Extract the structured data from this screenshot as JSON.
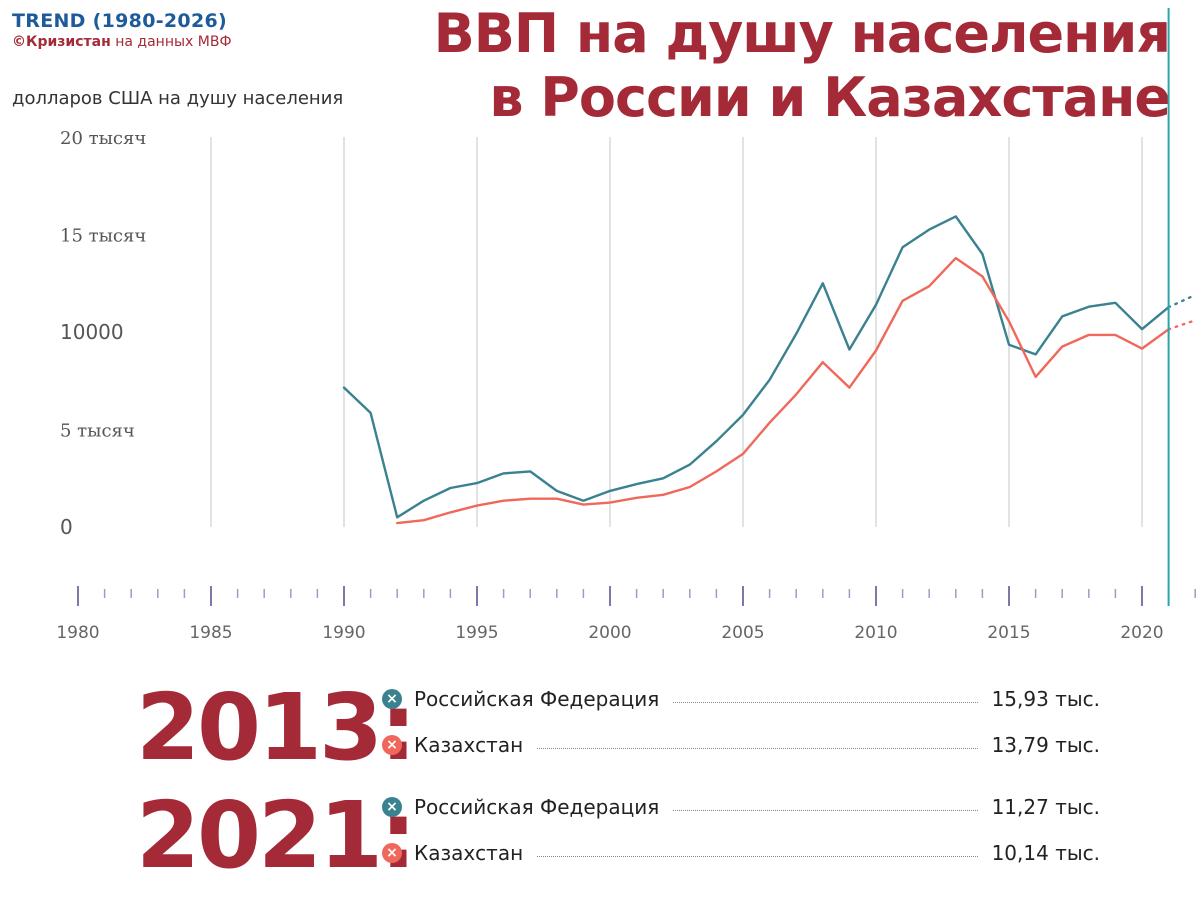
{
  "brand": {
    "title": "TREND (1980-2026)",
    "source_bold": "©Кризистан",
    "source_rest": "на данных МВФ"
  },
  "title_line1": "ВВП на душу населения",
  "title_line2": "в России и Казахстане",
  "unit_label": "долларов США на душу населения",
  "colors": {
    "russia": "#3a8290",
    "kazakhstan": "#f0685b",
    "accent": "#a52a38",
    "current_year_line": "#2aa3ad"
  },
  "chart_data": {
    "type": "line",
    "xlim": [
      1980,
      2022
    ],
    "ylim": [
      0,
      20000
    ],
    "x_ticks": [
      "1980",
      "1985",
      "1990",
      "1995",
      "2000",
      "2005",
      "2010",
      "2015",
      "2020"
    ],
    "y_ticks": [
      "0",
      "5 тысяч",
      "10000",
      "15 тысяч",
      "20 тысяч"
    ],
    "grid": true,
    "current_year_marker": 2021,
    "series": [
      {
        "name": "Российская Федерация",
        "color": "#3a8290",
        "x": [
          1990,
          1991,
          1992,
          1993,
          1994,
          1995,
          1996,
          1997,
          1998,
          1999,
          2000,
          2001,
          2002,
          2003,
          2004,
          2005,
          2006,
          2007,
          2008,
          2009,
          2010,
          2011,
          2012,
          2013,
          2014,
          2015,
          2016,
          2017,
          2018,
          2019,
          2020,
          2021
        ],
        "values": [
          7150,
          5850,
          500,
          1350,
          2000,
          2250,
          2750,
          2850,
          1850,
          1350,
          1850,
          2200,
          2500,
          3200,
          4400,
          5750,
          7550,
          9900,
          12500,
          9100,
          11400,
          14350,
          15250,
          15930,
          14000,
          9350,
          8850,
          10800,
          11300,
          11500,
          10150,
          11270
        ],
        "forecast_x": [
          2021,
          2022
        ],
        "forecast_values": [
          11270,
          11900
        ]
      },
      {
        "name": "Казахстан",
        "color": "#f0685b",
        "x": [
          1992,
          1993,
          1994,
          1995,
          1996,
          1997,
          1998,
          1999,
          2000,
          2001,
          2002,
          2003,
          2004,
          2005,
          2006,
          2007,
          2008,
          2009,
          2010,
          2011,
          2012,
          2013,
          2014,
          2015,
          2016,
          2017,
          2018,
          2019,
          2020,
          2021
        ],
        "values": [
          200,
          350,
          750,
          1100,
          1350,
          1450,
          1450,
          1150,
          1250,
          1500,
          1650,
          2050,
          2850,
          3750,
          5350,
          6800,
          8450,
          7150,
          9050,
          11600,
          12350,
          13790,
          12850,
          10550,
          7700,
          9250,
          9850,
          9850,
          9150,
          10140
        ],
        "forecast_x": [
          2021,
          2022
        ],
        "forecast_values": [
          10140,
          10600
        ]
      }
    ]
  },
  "summaries": [
    {
      "year_label": "2013:",
      "rows": [
        {
          "name": "Российская Федерация",
          "value": "15,93 тыс.",
          "color": "#3a8290"
        },
        {
          "name": "Казахстан",
          "value": "13,79 тыс.",
          "color": "#f0685b"
        }
      ]
    },
    {
      "year_label": "2021:",
      "rows": [
        {
          "name": "Российская Федерация",
          "value": "11,27 тыс.",
          "color": "#3a8290"
        },
        {
          "name": "Казахстан",
          "value": "10,14 тыс.",
          "color": "#f0685b"
        }
      ]
    }
  ],
  "icons": {
    "series_marker": "x-circle-icon"
  }
}
